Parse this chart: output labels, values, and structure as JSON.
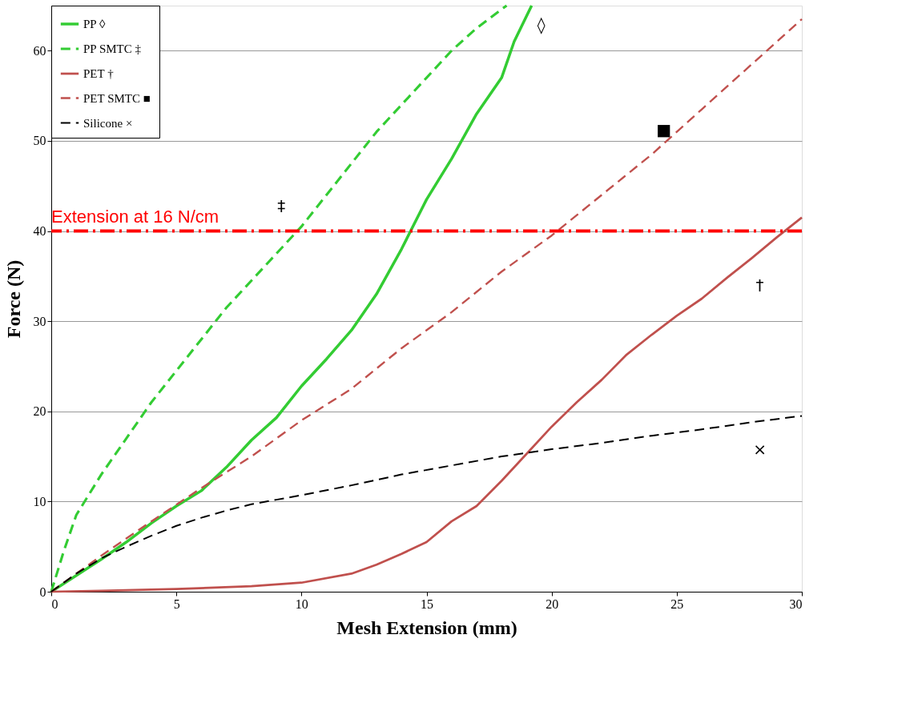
{
  "chart_data": {
    "type": "line",
    "xlabel": "Mesh Extension (mm)",
    "ylabel": "Force (N)",
    "xlim": [
      0,
      30
    ],
    "ylim": [
      0,
      65
    ],
    "xticks": [
      0,
      5,
      10,
      15,
      20,
      25,
      30
    ],
    "yticks": [
      0,
      10,
      20,
      30,
      40,
      50,
      60
    ],
    "grid": "y",
    "legend": "top left",
    "series": [
      {
        "name": "PP ◊",
        "color": "#33cc33",
        "line_style": "solid",
        "x": [
          0,
          1,
          2,
          3,
          4,
          5,
          6,
          7,
          8,
          9,
          10,
          11,
          12,
          13,
          14,
          15,
          16,
          17,
          18,
          18.5,
          19.2
        ],
        "values": [
          0,
          1.8,
          3.6,
          5.5,
          7.6,
          9.5,
          11.2,
          13.8,
          16.8,
          19.3,
          22.8,
          25.8,
          29,
          33,
          38,
          43.5,
          48,
          53,
          57,
          61,
          65
        ]
      },
      {
        "name": "PP SMTC ‡",
        "color": "#33cc33",
        "line_style": "dashed",
        "x": [
          0,
          0.5,
          1,
          2,
          3,
          4,
          5,
          6,
          7,
          8,
          9,
          10,
          11,
          12,
          13,
          14,
          15,
          16,
          17,
          18.2
        ],
        "values": [
          0,
          4.5,
          8.5,
          13,
          17,
          21,
          24.5,
          28,
          31.5,
          34.5,
          37.5,
          40.5,
          44,
          47.5,
          51,
          54,
          57,
          60,
          62.5,
          65
        ]
      },
      {
        "name": "PET †",
        "color": "#c0504d",
        "line_style": "solid",
        "x": [
          0,
          2,
          5,
          8,
          10,
          12,
          13,
          14,
          15,
          16,
          17,
          18,
          19,
          20,
          21,
          22,
          23,
          24,
          25,
          26,
          27,
          28,
          29,
          30
        ],
        "values": [
          0,
          0.1,
          0.3,
          0.6,
          1,
          2,
          3,
          4.2,
          5.5,
          7.8,
          9.5,
          12.3,
          15.3,
          18.3,
          21,
          23.5,
          26.3,
          28.5,
          30.6,
          32.5,
          34.8,
          37,
          39.3,
          41.5
        ]
      },
      {
        "name": "PET SMTC ■",
        "color": "#c0504d",
        "line_style": "dashed",
        "x": [
          0,
          2,
          4,
          6,
          8,
          10,
          12,
          14,
          16,
          18,
          20,
          22,
          24,
          26,
          28,
          30
        ],
        "values": [
          0,
          4,
          7.8,
          11.5,
          15,
          19,
          22.5,
          27,
          31,
          35.5,
          39.5,
          44,
          48.5,
          53.5,
          58.5,
          63.5
        ]
      },
      {
        "name": "Silicone ×",
        "color": "#000000",
        "line_style": "dashed",
        "x": [
          0,
          1,
          2,
          3,
          4,
          5,
          6,
          7,
          8,
          9,
          10,
          12,
          14,
          16,
          18,
          20,
          22,
          24,
          26,
          28,
          30
        ],
        "values": [
          0,
          2,
          3.7,
          5,
          6.2,
          7.3,
          8.2,
          9,
          9.7,
          10.2,
          10.7,
          11.8,
          13,
          14,
          15,
          15.8,
          16.5,
          17.3,
          18,
          18.8,
          19.5
        ]
      }
    ],
    "ref_lines": [
      {
        "axis": "y",
        "value": 40,
        "label": "Extension at 16 N/cm",
        "color": "#ff0000",
        "line_style": "dashdot"
      }
    ],
    "annotations": [
      "◊",
      "‡",
      "†",
      "■",
      "×"
    ]
  }
}
